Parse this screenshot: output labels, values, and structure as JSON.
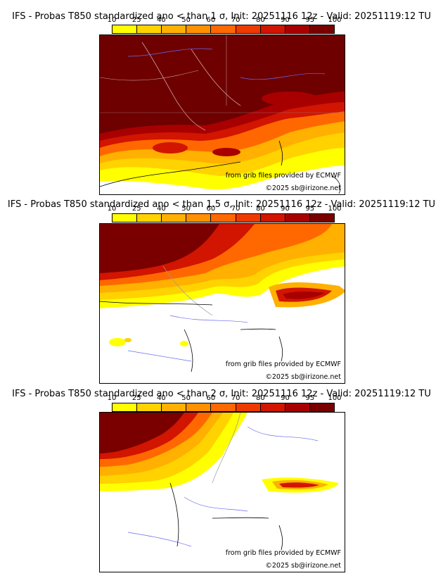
{
  "colorbar": {
    "ticks": [
      "10",
      "25",
      "40",
      "50",
      "60",
      "70",
      "80",
      "90",
      "95",
      "100"
    ],
    "colors": [
      "#ffff00",
      "#ffd200",
      "#ffb000",
      "#ff9000",
      "#ff6800",
      "#ee3a00",
      "#d11500",
      "#a80000",
      "#7a0000"
    ]
  },
  "panels": [
    {
      "title": "IFS - Probas T850  standardized ano < than 1 σ, Init: 20251116 12z - Valid: 20251119:12 TU",
      "credit_source": "from grib files provided by ECMWF",
      "credit_copyright": "©2025 sb@irizone.net"
    },
    {
      "title": "IFS - Probas T850  standardized ano < than 1.5 σ, Init: 20251116 12z - Valid: 20251119:12 TU",
      "credit_source": "from grib files provided by ECMWF",
      "credit_copyright": "©2025 sb@irizone.net"
    },
    {
      "title": "IFS - Probas T850  standardized ano < than 2 σ, Init: 20251116 12z - Valid: 20251119:12 TU",
      "credit_source": "from grib files provided by ECMWF",
      "credit_copyright": "©2025 sb@irizone.net"
    }
  ]
}
